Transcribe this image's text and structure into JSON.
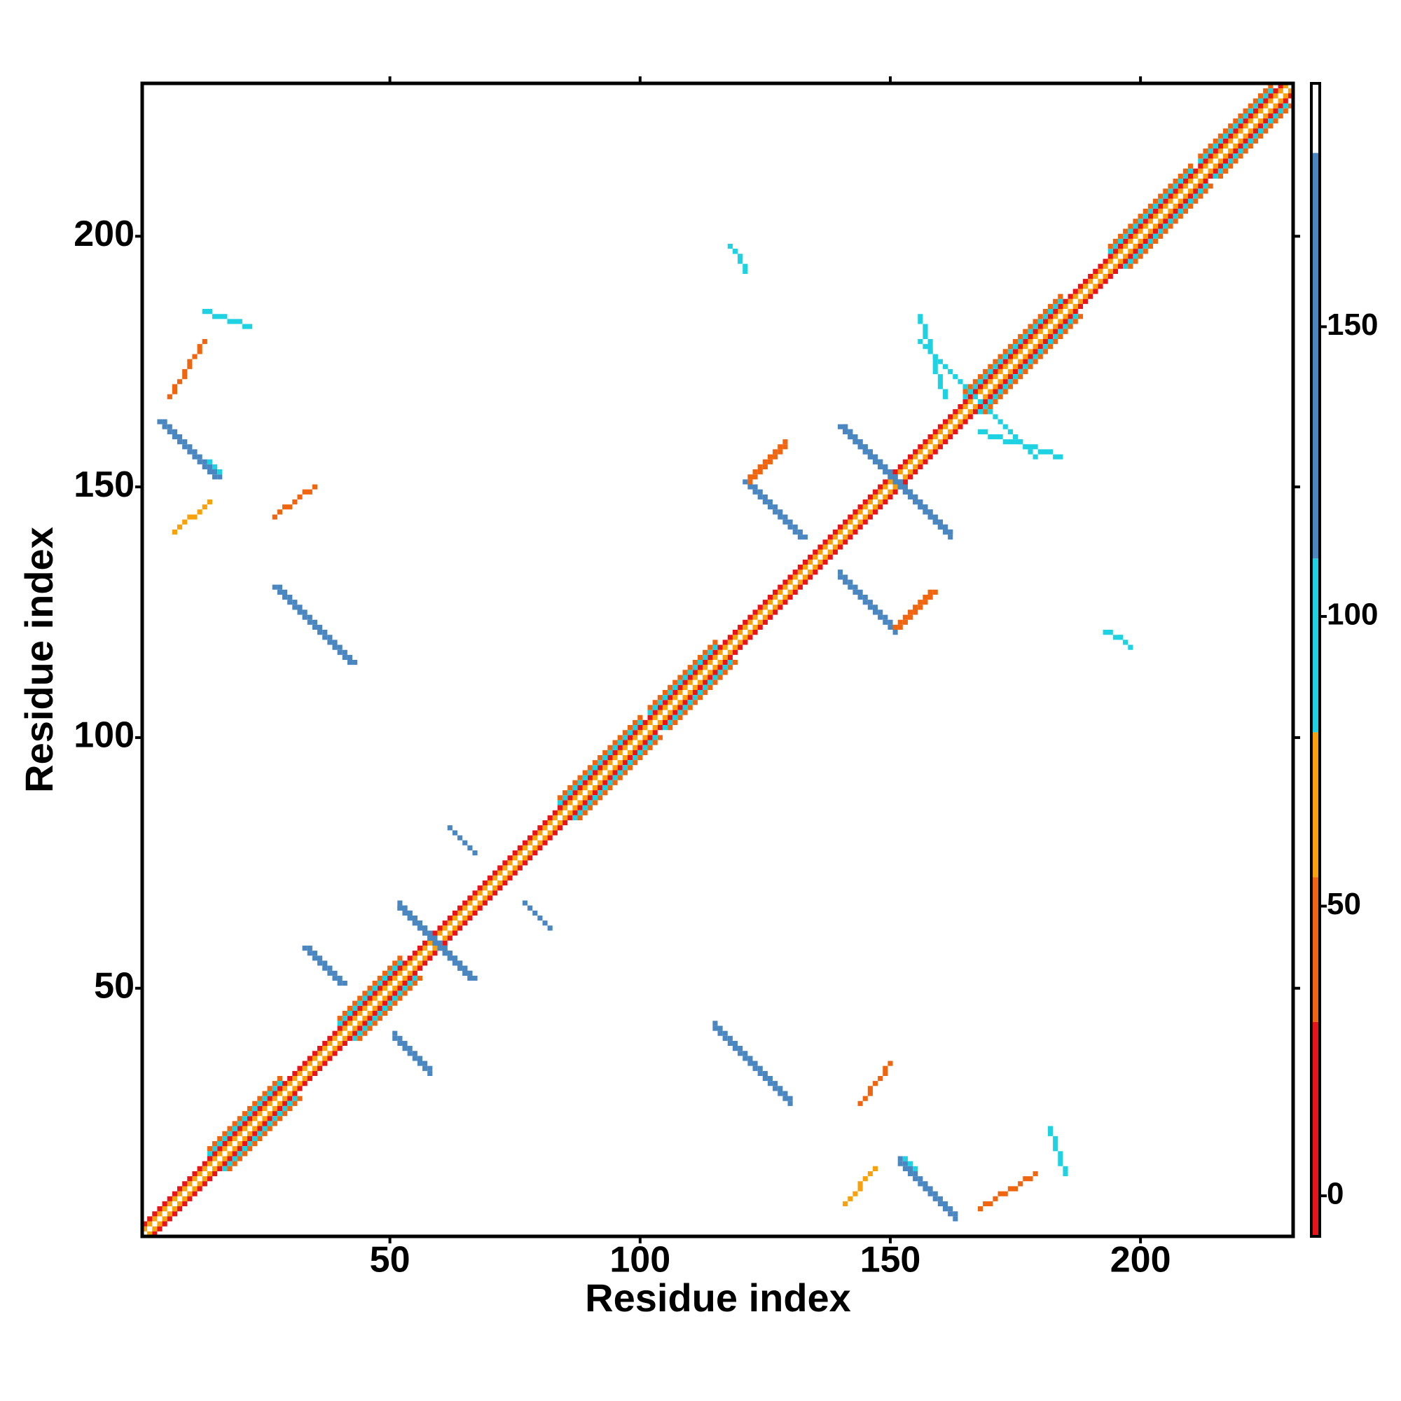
{
  "chart_data": {
    "type": "heatmap",
    "xlabel": "Residue index",
    "ylabel": "Residue index",
    "xlim": [
      0.5,
      230.5
    ],
    "ylim": [
      0.5,
      230.5
    ],
    "xticks": [
      50,
      100,
      150,
      200
    ],
    "yticks": [
      50,
      100,
      150,
      200
    ],
    "symmetric": true,
    "colorbar": {
      "lim": [
        -7,
        192
      ],
      "ticks": [
        0,
        50,
        100,
        150
      ],
      "bands": [
        {
          "from": -7,
          "to": 30,
          "color": "#e8141a"
        },
        {
          "from": 30,
          "to": 55,
          "color": "#f0650f"
        },
        {
          "from": 55,
          "to": 80,
          "color": "#f7a20d"
        },
        {
          "from": 80,
          "to": 110,
          "color": "#1ed2e2"
        },
        {
          "from": 110,
          "to": 180,
          "color": "#4a86c0"
        },
        {
          "from": 180,
          "to": 192,
          "color": "#ffffff"
        }
      ]
    },
    "segments": [
      {
        "x": [
          1,
          229
        ],
        "y": [
          2,
          230
        ],
        "value": 60
      },
      {
        "x": [
          1,
          228
        ],
        "y": [
          3,
          230
        ],
        "value": 10
      },
      {
        "x": [
          14,
          28
        ],
        "y": [
          17,
          31
        ],
        "value": 95
      },
      {
        "x": [
          14,
          28
        ],
        "y": [
          18,
          32
        ],
        "value": 45
      },
      {
        "x": [
          40,
          52
        ],
        "y": [
          43,
          55
        ],
        "value": 95
      },
      {
        "x": [
          40,
          52
        ],
        "y": [
          44,
          56
        ],
        "value": 45
      },
      {
        "x": [
          84,
          100
        ],
        "y": [
          87,
          103
        ],
        "value": 95
      },
      {
        "x": [
          84,
          100
        ],
        "y": [
          88,
          104
        ],
        "value": 45
      },
      {
        "x": [
          102,
          115
        ],
        "y": [
          105,
          118
        ],
        "value": 95
      },
      {
        "x": [
          102,
          115
        ],
        "y": [
          106,
          119
        ],
        "value": 45
      },
      {
        "x": [
          165,
          184
        ],
        "y": [
          168,
          187
        ],
        "value": 95
      },
      {
        "x": [
          165,
          184
        ],
        "y": [
          169,
          188
        ],
        "value": 45
      },
      {
        "x": [
          194,
          210
        ],
        "y": [
          197,
          213
        ],
        "value": 95
      },
      {
        "x": [
          194,
          210
        ],
        "y": [
          198,
          214
        ],
        "value": 45
      },
      {
        "x": [
          212,
          226
        ],
        "y": [
          215,
          229
        ],
        "value": 95
      },
      {
        "x": [
          212,
          226
        ],
        "y": [
          216,
          230
        ],
        "value": 45
      },
      {
        "x": [
          4,
          15
        ],
        "y": [
          163,
          152
        ],
        "value": 150
      },
      {
        "x": [
          5,
          16
        ],
        "y": [
          163,
          152
        ],
        "value": 150
      },
      {
        "x": [
          27,
          42
        ],
        "y": [
          130,
          115
        ],
        "value": 150
      },
      {
        "x": [
          28,
          43
        ],
        "y": [
          130,
          115
        ],
        "value": 150
      },
      {
        "x": [
          33,
          40
        ],
        "y": [
          58,
          51
        ],
        "value": 150
      },
      {
        "x": [
          34,
          41
        ],
        "y": [
          58,
          51
        ],
        "value": 150
      },
      {
        "x": [
          52,
          66
        ],
        "y": [
          66,
          52
        ],
        "value": 150
      },
      {
        "x": [
          53,
          67
        ],
        "y": [
          66,
          52
        ],
        "value": 150
      },
      {
        "x": [
          62,
          67
        ],
        "y": [
          82,
          77
        ],
        "value": 150
      },
      {
        "x": [
          121,
          132
        ],
        "y": [
          151,
          140
        ],
        "value": 150
      },
      {
        "x": [
          122,
          133
        ],
        "y": [
          151,
          140
        ],
        "value": 150
      },
      {
        "x": [
          140,
          161
        ],
        "y": [
          162,
          141
        ],
        "value": 150
      },
      {
        "x": [
          141,
          162
        ],
        "y": [
          162,
          141
        ],
        "value": 150
      },
      {
        "x": [
          14,
          16
        ],
        "y": [
          155,
          153
        ],
        "value": 95
      },
      {
        "x": [
          7,
          14
        ],
        "y": [
          141,
          147
        ],
        "value": 60
      },
      {
        "x": [
          6,
          13
        ],
        "y": [
          168,
          179
        ],
        "value": 35
      },
      {
        "x": [
          27,
          35
        ],
        "y": [
          144,
          150
        ],
        "value": 45
      },
      {
        "x": [
          122,
          129
        ],
        "y": [
          152,
          159
        ],
        "value": 45
      },
      {
        "x": [
          151,
          158
        ],
        "y": [
          122,
          129
        ],
        "value": 45
      },
      {
        "x": [
          13,
          22
        ],
        "y": [
          185,
          182
        ],
        "value": 95
      },
      {
        "x": [
          118,
          120
        ],
        "y": [
          198,
          196
        ],
        "value": 95
      },
      {
        "x": [
          156,
          167
        ],
        "y": [
          179,
          168
        ],
        "value": 100
      },
      {
        "x": [
          193,
          197
        ],
        "y": [
          121,
          119
        ],
        "value": 95
      },
      {
        "x": [
          168,
          184
        ],
        "y": [
          161,
          156
        ],
        "value": 100
      }
    ]
  }
}
